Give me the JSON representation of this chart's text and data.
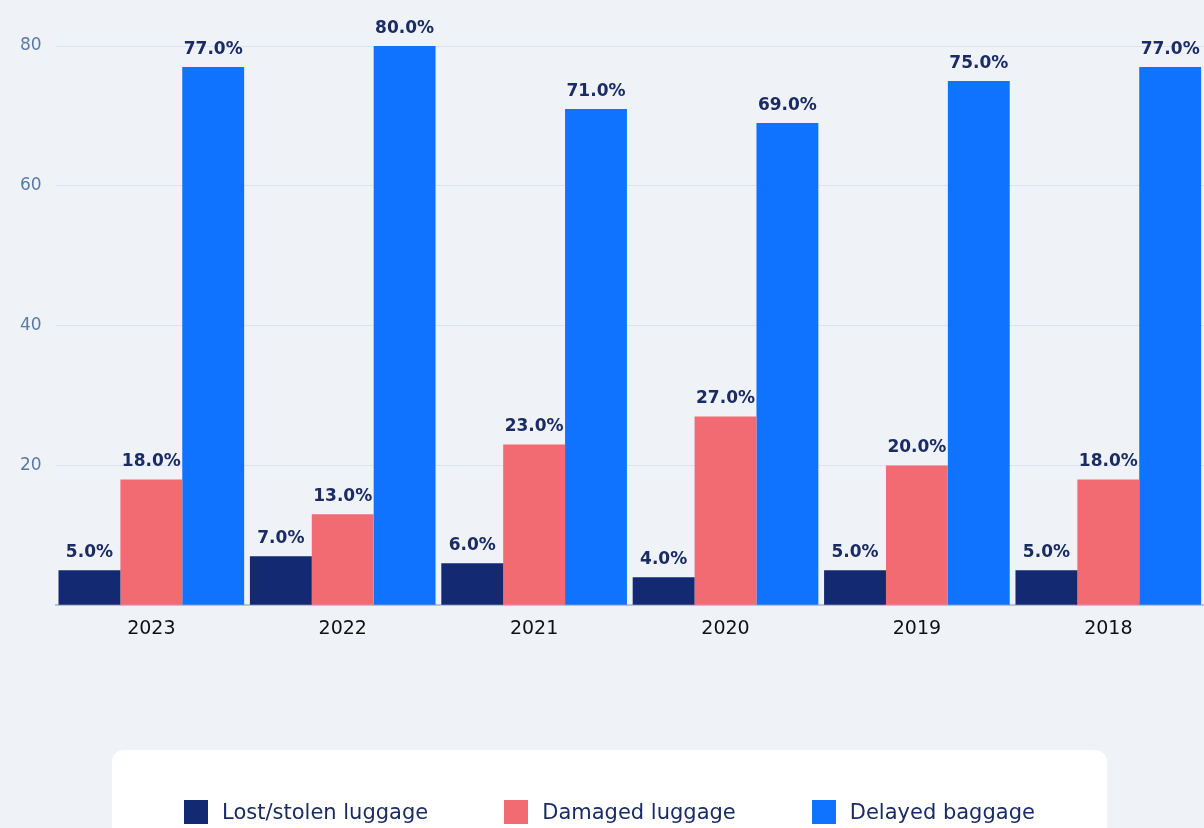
{
  "chart_data": {
    "type": "bar",
    "categories": [
      "2023",
      "2022",
      "2021",
      "2020",
      "2019",
      "2018"
    ],
    "series": [
      {
        "name": "Lost/stolen luggage",
        "color": "#132a72",
        "values": [
          5,
          7,
          6,
          4,
          5,
          5
        ],
        "value_labels": [
          "5.0%",
          "7.0%",
          "6.0%",
          "4.0%",
          "5.0%",
          "5.0%"
        ]
      },
      {
        "name": "Damaged luggage",
        "color": "#f26b73",
        "values": [
          18,
          13,
          23,
          27,
          20,
          18
        ],
        "value_labels": [
          "18.0%",
          "13.0%",
          "23.0%",
          "27.0%",
          "20.0%",
          "18.0%"
        ]
      },
      {
        "name": "Delayed baggage",
        "color": "#0f73ff",
        "values": [
          77,
          80,
          71,
          69,
          75,
          77
        ],
        "value_labels": [
          "77.0%",
          "80.0%",
          "71.0%",
          "69.0%",
          "75.0%",
          "77.0%"
        ]
      }
    ],
    "ylim": [
      0,
      80
    ],
    "yticks": [
      {
        "value": 0,
        "label": null
      },
      20,
      40,
      60,
      80
    ],
    "grid": "y",
    "legend": "bottom"
  }
}
